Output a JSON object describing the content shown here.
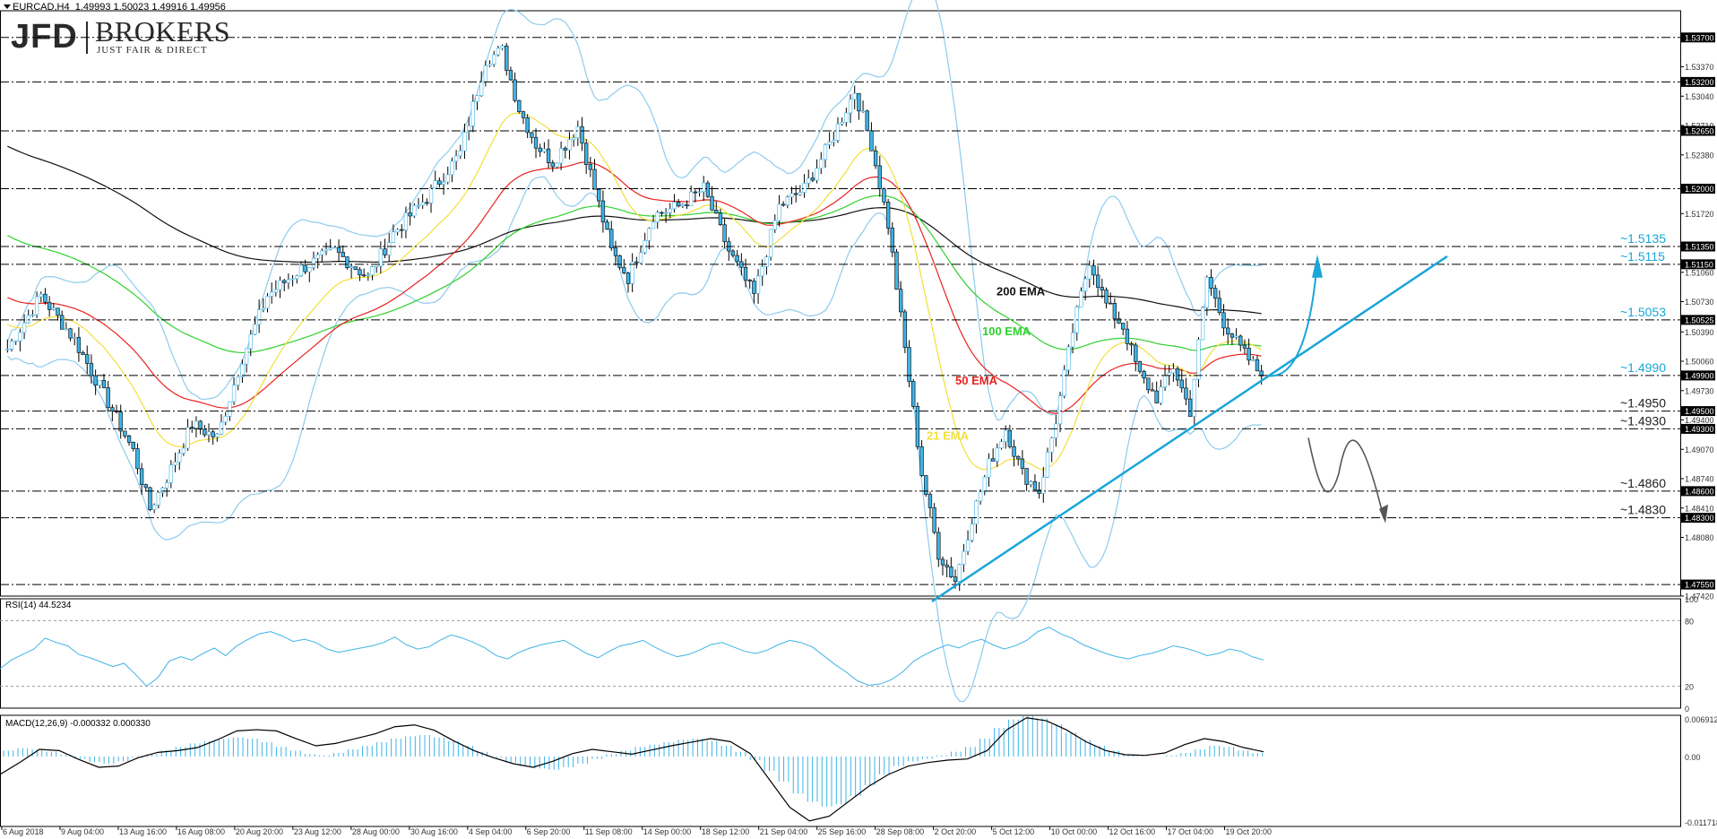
{
  "header": {
    "symbol": "EURCAD,H4",
    "ohlc": "1.49993 1.50023 1.49916 1.49956",
    "rsi_label": "RSI(14) 44.5234",
    "macd_label": "MACD(12,26,9) -0.000332 0.000330"
  },
  "logo": {
    "brand": "JFD",
    "name": "BROKERS",
    "tagline": "JUST FAIR & DIRECT"
  },
  "colors": {
    "candle": "#3fb3e6",
    "bollinger": "#8ecbee",
    "ema21": "#f2df3c",
    "ema50": "#e8221f",
    "ema100": "#2ed12e",
    "ema200": "#111111",
    "trendline": "#1aa6d8",
    "label_blue": "#1aa6d8",
    "grid": "#000000"
  },
  "chart_data": {
    "type": "candlestick",
    "symbol": "EURCAD",
    "timeframe": "H4",
    "ylim": [
      1.4742,
      1.5398
    ],
    "price_axis_ticks": [
      "1.53700",
      "1.53370",
      "1.53040",
      "1.52710",
      "1.52650",
      "1.52380",
      "1.52000",
      "1.51720",
      "1.51350",
      "1.51150",
      "1.51060",
      "1.50730",
      "1.50525",
      "1.50390",
      "1.50060",
      "1.49900",
      "1.49730",
      "1.49500",
      "1.49400",
      "1.49300",
      "1.49070",
      "1.48740",
      "1.48600",
      "1.48410",
      "1.48300",
      "1.48080",
      "1.47550",
      "1.47420"
    ],
    "levels": [
      {
        "price": 1.537,
        "axis_label": "1.53700",
        "label": ""
      },
      {
        "price": 1.532,
        "axis_label": "1.53200",
        "label": ""
      },
      {
        "price": 1.5265,
        "axis_label": "1.52650",
        "label": ""
      },
      {
        "price": 1.52,
        "axis_label": "1.52000",
        "label": ""
      },
      {
        "price": 1.5135,
        "axis_label": "1.51350",
        "label": "~1.5135"
      },
      {
        "price": 1.5115,
        "axis_label": "1.51150",
        "label": "~1.5115"
      },
      {
        "price": 1.50525,
        "axis_label": "1.50525",
        "label": "~1.5053"
      },
      {
        "price": 1.499,
        "axis_label": "1.49900",
        "label": "~1.4990"
      },
      {
        "price": 1.495,
        "axis_label": "1.49500",
        "label": "~1.4950"
      },
      {
        "price": 1.493,
        "axis_label": "1.49300",
        "label": "~1.4930"
      },
      {
        "price": 1.486,
        "axis_label": "1.48600",
        "label": "~1.4860"
      },
      {
        "price": 1.483,
        "axis_label": "1.48300",
        "label": "~1.4830"
      },
      {
        "price": 1.4755,
        "axis_label": "1.47550",
        "label": ""
      }
    ],
    "ema_labels": [
      "200 EMA",
      "100 EMA",
      "50 EMA",
      "21 EMA"
    ],
    "x_ticks": [
      "6 Aug 2018",
      "9 Aug 04:00",
      "13 Aug 16:00",
      "16 Aug 08:00",
      "20 Aug 20:00",
      "23 Aug 12:00",
      "28 Aug 00:00",
      "30 Aug 16:00",
      "4 Sep 04:00",
      "6 Sep 20:00",
      "11 Sep 08:00",
      "14 Sep 00:00",
      "18 Sep 12:00",
      "21 Sep 04:00",
      "25 Sep 16:00",
      "28 Sep 08:00",
      "2 Oct 20:00",
      "5 Oct 12:00",
      "10 Oct 00:00",
      "12 Oct 16:00",
      "17 Oct 04:00",
      "19 Oct 20:00"
    ],
    "close_path": [
      [
        0,
        1.502
      ],
      [
        8,
        1.508
      ],
      [
        16,
        1.503
      ],
      [
        24,
        1.496
      ],
      [
        30,
        1.4905
      ],
      [
        34,
        1.484
      ],
      [
        38,
        1.4875
      ],
      [
        44,
        1.4935
      ],
      [
        50,
        1.492
      ],
      [
        56,
        1.501
      ],
      [
        62,
        1.508
      ],
      [
        70,
        1.511
      ],
      [
        78,
        1.513
      ],
      [
        86,
        1.51
      ],
      [
        92,
        1.515
      ],
      [
        100,
        1.519
      ],
      [
        108,
        1.524
      ],
      [
        114,
        1.5345
      ],
      [
        118,
        1.5355
      ],
      [
        122,
        1.529
      ],
      [
        126,
        1.525
      ],
      [
        130,
        1.523
      ],
      [
        136,
        1.527
      ],
      [
        140,
        1.52
      ],
      [
        144,
        1.513
      ],
      [
        148,
        1.51
      ],
      [
        154,
        1.517
      ],
      [
        160,
        1.518
      ],
      [
        166,
        1.52
      ],
      [
        172,
        1.513
      ],
      [
        178,
        1.508
      ],
      [
        184,
        1.518
      ],
      [
        190,
        1.52
      ],
      [
        196,
        1.525
      ],
      [
        202,
        1.531
      ],
      [
        206,
        1.525
      ],
      [
        210,
        1.516
      ],
      [
        214,
        1.502
      ],
      [
        218,
        1.488
      ],
      [
        222,
        1.479
      ],
      [
        226,
        1.476
      ],
      [
        230,
        1.483
      ],
      [
        234,
        1.489
      ],
      [
        238,
        1.493
      ],
      [
        242,
        1.488
      ],
      [
        246,
        1.486
      ],
      [
        250,
        1.494
      ],
      [
        254,
        1.504
      ],
      [
        258,
        1.512
      ],
      [
        262,
        1.507
      ],
      [
        266,
        1.5045
      ],
      [
        270,
        1.499
      ],
      [
        274,
        1.4965
      ],
      [
        278,
        1.5
      ],
      [
        282,
        1.495
      ],
      [
        286,
        1.51
      ],
      [
        290,
        1.505
      ],
      [
        294,
        1.502
      ],
      [
        298,
        1.4996
      ]
    ],
    "rsi": {
      "label": "RSI(14) 44.5234",
      "value": 44.5234,
      "ylim": [
        0,
        100
      ],
      "axis_ticks": [
        "100",
        "80",
        "20",
        "0"
      ],
      "values": [
        36,
        44,
        49,
        54,
        64,
        60,
        57,
        49,
        46,
        42,
        38,
        41,
        31,
        20,
        28,
        43,
        47,
        44,
        50,
        55,
        48,
        57,
        63,
        68,
        70,
        66,
        61,
        63,
        60,
        54,
        51,
        53,
        55,
        57,
        60,
        65,
        58,
        54,
        56,
        62,
        67,
        64,
        60,
        55,
        48,
        45,
        51,
        55,
        58,
        60,
        62,
        56,
        50,
        46,
        52,
        57,
        59,
        62,
        56,
        51,
        47,
        49,
        53,
        58,
        60,
        56,
        52,
        50,
        53,
        58,
        62,
        60,
        56,
        48,
        40,
        33,
        25,
        21,
        22,
        26,
        33,
        43,
        49,
        54,
        58,
        55,
        60,
        63,
        58,
        54,
        57,
        62,
        70,
        74,
        68,
        64,
        58,
        54,
        50,
        47,
        45,
        48,
        50,
        53,
        57,
        55,
        52,
        48,
        50,
        54,
        52,
        47,
        44
      ]
    },
    "macd": {
      "label": "MACD(12,26,9) -0.000332 0.000330",
      "ylim": [
        -0.011718,
        0.006912
      ],
      "axis_ticks": [
        "0.006912",
        "0.00",
        "-0.011718"
      ],
      "signal": [
        -0.003,
        -0.001,
        0.0012,
        0.001,
        -0.0005,
        -0.0018,
        -0.0016,
        -0.0002,
        0.0007,
        0.001,
        0.0015,
        0.0028,
        0.0043,
        0.0045,
        0.0043,
        0.003,
        0.0018,
        0.0022,
        0.003,
        0.0038,
        0.005,
        0.0053,
        0.0044,
        0.0026,
        0.001,
        -0.0002,
        -0.0012,
        -0.0018,
        -0.0008,
        0.0005,
        0.0012,
        0.0008,
        0.0004,
        0.0011,
        0.0018,
        0.0024,
        0.003,
        0.0025,
        0.0005,
        -0.004,
        -0.0085,
        -0.0108,
        -0.01,
        -0.0075,
        -0.005,
        -0.003,
        -0.0016,
        -0.001,
        -0.0006,
        -0.0004,
        0.001,
        0.0045,
        0.0065,
        0.006,
        0.0045,
        0.0025,
        0.001,
        0.0003,
        0.0002,
        0.0006,
        0.002,
        0.003,
        0.0025,
        0.0015,
        0.0008
      ],
      "histogram": [
        0.001,
        0.0014,
        0.0012,
        0.0008,
        0.0003,
        -0.0004,
        -0.0009,
        -0.0012,
        -0.0008,
        -0.0002,
        0.0004,
        0.001,
        0.0016,
        0.0022,
        0.0026,
        0.003,
        0.0032,
        0.003,
        0.0024,
        0.0016,
        0.001,
        0.0004,
        0.0002,
        0.0006,
        0.0012,
        0.0018,
        0.0024,
        0.003,
        0.0034,
        0.0036,
        0.0032,
        0.0026,
        0.0018,
        0.0008,
        -0.0002,
        -0.001,
        -0.0016,
        -0.002,
        -0.0022,
        -0.0018,
        -0.0012,
        -0.0004,
        0.0004,
        0.001,
        0.0016,
        0.002,
        0.0024,
        0.0028,
        0.003,
        0.0026,
        0.0018,
        0.0008,
        -0.0006,
        -0.0024,
        -0.0042,
        -0.0062,
        -0.0076,
        -0.0084,
        -0.008,
        -0.0066,
        -0.0048,
        -0.003,
        -0.0016,
        -0.0008,
        -0.0004,
        0.0002,
        0.0008,
        0.0016,
        0.003,
        0.0048,
        0.0062,
        0.0068,
        0.0064,
        0.0054,
        0.004,
        0.0028,
        0.0018,
        0.001,
        0.0004,
        0.0001,
        0.0,
        0.0002,
        0.0006,
        0.0012,
        0.0018,
        0.0016,
        0.001,
        0.0006
      ]
    }
  }
}
